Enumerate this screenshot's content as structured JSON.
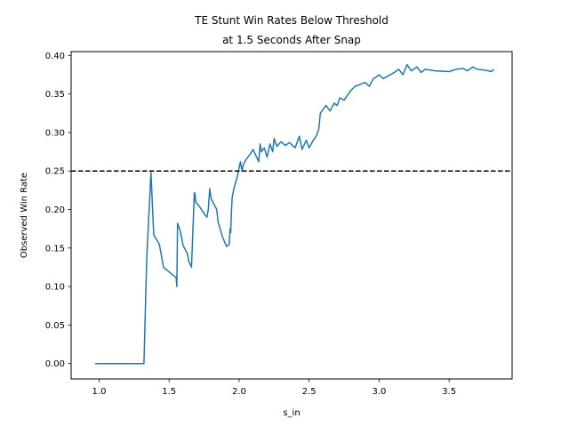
{
  "chart_data": {
    "type": "line",
    "title_line1": "TE Stunt Win Rates Below Threshold",
    "title_line2": "at 1.5 Seconds After Snap",
    "xlabel": "s_in",
    "ylabel": "Observed Win Rate",
    "xlim": [
      0.8,
      3.95
    ],
    "ylim": [
      -0.02,
      0.405
    ],
    "xticks": [
      1.0,
      1.5,
      2.0,
      2.5,
      3.0,
      3.5
    ],
    "xtick_labels": [
      "1.0",
      "1.5",
      "2.0",
      "2.5",
      "3.0",
      "3.5"
    ],
    "yticks": [
      0.0,
      0.05,
      0.1,
      0.15,
      0.2,
      0.25,
      0.3,
      0.35,
      0.4
    ],
    "ytick_labels": [
      "0.00",
      "0.05",
      "0.10",
      "0.15",
      "0.20",
      "0.25",
      "0.30",
      "0.35",
      "0.40"
    ],
    "threshold": 0.25,
    "threshold_style": "dashed",
    "line_color": "#1f77b4",
    "threshold_color": "#000000",
    "series": [
      {
        "x": [
          0.97,
          1.1,
          1.2,
          1.32,
          1.34,
          1.37,
          1.39,
          1.43,
          1.46,
          1.54,
          1.55,
          1.555,
          1.56,
          1.58,
          1.6,
          1.63,
          1.64,
          1.66,
          1.68,
          1.685,
          1.69,
          1.72,
          1.76,
          1.77,
          1.78,
          1.79,
          1.8,
          1.84,
          1.85,
          1.88,
          1.91,
          1.93,
          1.935,
          1.94,
          1.945,
          1.95,
          1.96,
          1.97,
          1.98,
          1.99,
          2.0,
          2.01,
          2.02,
          2.03,
          2.05,
          2.08,
          2.1,
          2.12,
          2.14,
          2.15,
          2.16,
          2.18,
          2.2,
          2.22,
          2.24,
          2.25,
          2.27,
          2.3,
          2.33,
          2.36,
          2.4,
          2.43,
          2.45,
          2.48,
          2.5,
          2.53,
          2.55,
          2.57,
          2.58,
          2.6,
          2.62,
          2.65,
          2.68,
          2.7,
          2.72,
          2.75,
          2.78,
          2.8,
          2.83,
          2.86,
          2.9,
          2.93,
          2.96,
          2.98,
          3.0,
          3.03,
          3.06,
          3.1,
          3.14,
          3.17,
          3.2,
          3.23,
          3.27,
          3.3,
          3.33,
          3.4,
          3.5,
          3.55,
          3.6,
          3.63,
          3.67,
          3.7,
          3.75,
          3.78,
          3.8,
          3.82
        ],
        "y": [
          0.0,
          0.0,
          0.0,
          0.0,
          0.135,
          0.248,
          0.167,
          0.155,
          0.125,
          0.113,
          0.112,
          0.1,
          0.182,
          0.172,
          0.153,
          0.143,
          0.133,
          0.125,
          0.222,
          0.22,
          0.21,
          0.203,
          0.192,
          0.19,
          0.2,
          0.227,
          0.214,
          0.2,
          0.184,
          0.165,
          0.152,
          0.155,
          0.175,
          0.17,
          0.197,
          0.215,
          0.225,
          0.232,
          0.238,
          0.245,
          0.255,
          0.262,
          0.25,
          0.258,
          0.265,
          0.272,
          0.278,
          0.27,
          0.262,
          0.285,
          0.275,
          0.28,
          0.268,
          0.285,
          0.275,
          0.292,
          0.282,
          0.288,
          0.283,
          0.287,
          0.28,
          0.295,
          0.278,
          0.29,
          0.28,
          0.29,
          0.295,
          0.305,
          0.325,
          0.33,
          0.335,
          0.328,
          0.338,
          0.335,
          0.345,
          0.342,
          0.35,
          0.355,
          0.36,
          0.362,
          0.365,
          0.36,
          0.37,
          0.372,
          0.375,
          0.37,
          0.373,
          0.377,
          0.382,
          0.375,
          0.388,
          0.38,
          0.385,
          0.378,
          0.382,
          0.38,
          0.379,
          0.382,
          0.383,
          0.38,
          0.385,
          0.382,
          0.381,
          0.38,
          0.379,
          0.382
        ]
      }
    ]
  }
}
